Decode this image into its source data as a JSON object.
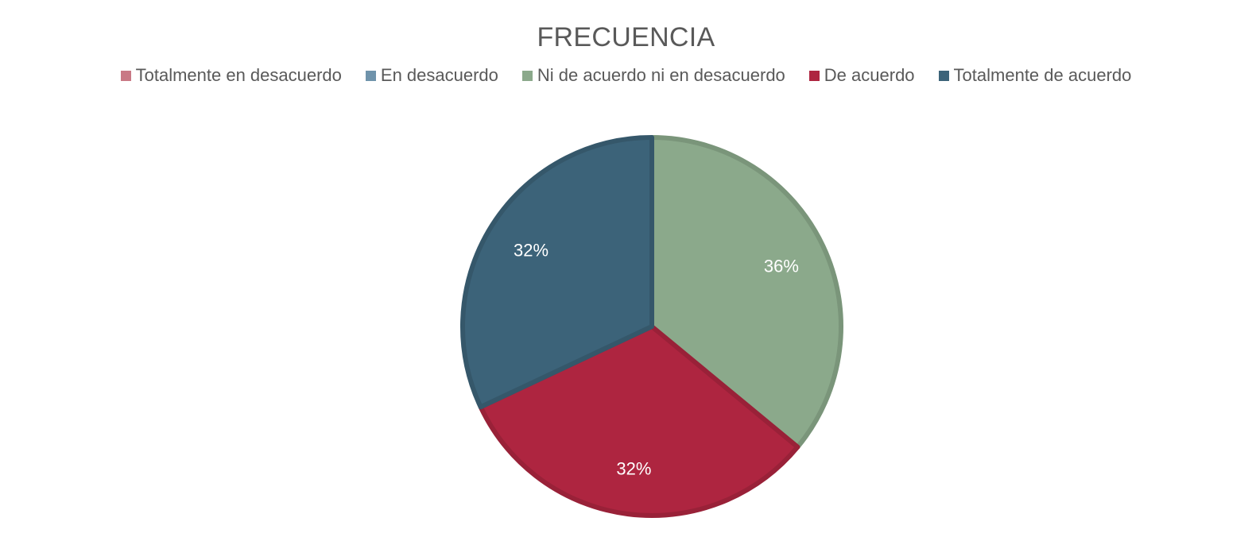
{
  "chart_data": {
    "type": "pie",
    "title": "FRECUENCIA",
    "legend_position": "top",
    "categories": [
      "Totalmente en desacuerdo",
      "En desacuerdo",
      "Ni de acuerdo ni en desacuerdo",
      "De acuerdo",
      "Totalmente de acuerdo"
    ],
    "values": [
      0,
      0,
      36,
      32,
      32
    ],
    "labels": [
      "",
      "",
      "36%",
      "32%",
      "32%"
    ],
    "colors": [
      "#c97985",
      "#6f93ab",
      "#8ba98b",
      "#ae2540",
      "#3c6379"
    ]
  }
}
